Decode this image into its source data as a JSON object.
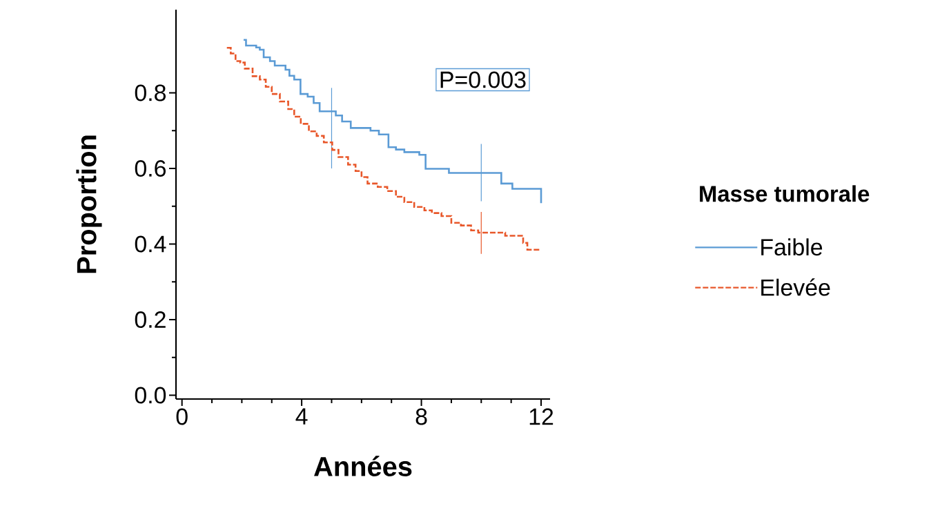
{
  "chart_data": {
    "type": "step",
    "xlabel": "Années",
    "ylabel": "Proportion",
    "legend_title": "Masse tumorale",
    "legend": "right",
    "annotations": [
      "P=0.003"
    ],
    "xlim": [
      -0.2,
      12.3
    ],
    "ylim": [
      -0.01,
      1.02
    ],
    "xticks": [
      0,
      4,
      8,
      12
    ],
    "yticks": [
      {
        "value": 0,
        "label": "0.0"
      },
      {
        "value": 0.2,
        "label": "0.2"
      },
      {
        "value": 0.4,
        "label": "0.4"
      },
      {
        "value": 0.6,
        "label": "0.6"
      },
      {
        "value": 0.8,
        "label": "0.8"
      }
    ],
    "series": [
      {
        "name": "Faible",
        "color": "#5b9bd5",
        "line_style": "solid",
        "x": [
          2.06,
          2.14,
          2.48,
          2.6,
          2.73,
          2.94,
          3.1,
          3.46,
          3.59,
          3.75,
          3.96,
          4.2,
          4.4,
          4.6,
          5,
          5.14,
          5.35,
          5.64,
          6.3,
          6.58,
          6.9,
          7.15,
          7.43,
          7.93,
          8.14,
          8.92,
          10,
          10.67,
          11.04,
          12
        ],
        "values": [
          0.94,
          0.925,
          0.92,
          0.914,
          0.894,
          0.884,
          0.872,
          0.861,
          0.845,
          0.835,
          0.797,
          0.79,
          0.773,
          0.751,
          0.751,
          0.74,
          0.724,
          0.707,
          0.7,
          0.69,
          0.656,
          0.65,
          0.643,
          0.636,
          0.599,
          0.588,
          0.588,
          0.56,
          0.546,
          0.508
        ],
        "errors": [
          null,
          null,
          null,
          null,
          null,
          null,
          null,
          null,
          null,
          null,
          null,
          null,
          null,
          null,
          [
            0.6,
            0.813
          ],
          null,
          null,
          null,
          null,
          null,
          null,
          null,
          null,
          null,
          null,
          null,
          [
            0.513,
            0.665
          ],
          null,
          null,
          null
        ]
      },
      {
        "name": "Elevée",
        "color": "#e8572a",
        "line_style": "dashed",
        "x": [
          1.5,
          1.63,
          1.79,
          1.95,
          2.1,
          2.36,
          2.6,
          2.8,
          3.0,
          3.27,
          3.55,
          3.75,
          3.97,
          4.24,
          4.5,
          4.74,
          5.02,
          5.23,
          5.55,
          5.8,
          6.0,
          6.2,
          6.54,
          6.86,
          7.15,
          7.43,
          7.76,
          8.1,
          8.35,
          8.67,
          9.0,
          9.32,
          9.66,
          9.9,
          10,
          10.8,
          11.4,
          11.54,
          12
        ],
        "values": [
          0.919,
          0.904,
          0.884,
          0.88,
          0.864,
          0.844,
          0.835,
          0.816,
          0.797,
          0.777,
          0.757,
          0.737,
          0.718,
          0.698,
          0.686,
          0.669,
          0.649,
          0.63,
          0.61,
          0.593,
          0.577,
          0.56,
          0.551,
          0.54,
          0.525,
          0.511,
          0.498,
          0.489,
          0.482,
          0.474,
          0.456,
          0.449,
          0.436,
          0.43,
          0.43,
          0.422,
          0.403,
          0.385,
          0.385
        ],
        "errors": [
          null,
          null,
          null,
          null,
          null,
          null,
          null,
          null,
          null,
          null,
          null,
          null,
          null,
          null,
          null,
          null,
          null,
          null,
          null,
          null,
          null,
          null,
          null,
          null,
          null,
          null,
          null,
          null,
          null,
          null,
          null,
          null,
          null,
          null,
          [
            0.374,
            0.485
          ],
          null,
          null,
          null,
          null
        ]
      }
    ]
  }
}
